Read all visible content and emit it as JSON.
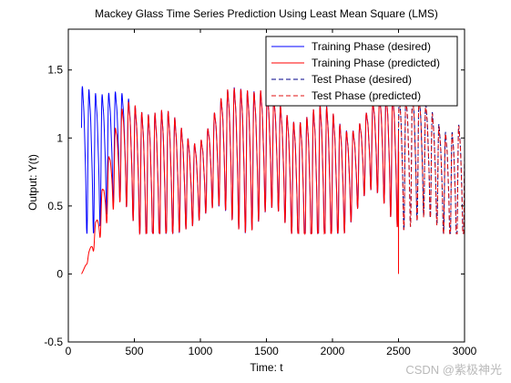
{
  "watermark": "CSDN @紫极神光",
  "chart_data": {
    "type": "line",
    "title": "Mackey Glass Time Series Prediction Using Least Mean Square (LMS)",
    "xlabel": "Time: t",
    "ylabel": "Output: Y(t)",
    "xlim": [
      0,
      3000
    ],
    "ylim": [
      -0.5,
      1.8
    ],
    "xticks": [
      0,
      500,
      1000,
      1500,
      2000,
      2500,
      3000
    ],
    "xtick_labels": [
      "0",
      "500",
      "1000",
      "1500",
      "2000",
      "2500",
      "3000"
    ],
    "yticks": [
      -0.5,
      0,
      0.5,
      1,
      1.5
    ],
    "ytick_labels": [
      "-0.5",
      "0",
      "0.5",
      "1",
      "1.5"
    ],
    "grid": false,
    "legend_position": "top-right",
    "series": [
      {
        "name": "Training Phase (desired)",
        "color": "#0000ff",
        "style": "solid",
        "x_range": [
          100,
          2500
        ]
      },
      {
        "name": "Training Phase (predicted)",
        "color": "#ff0000",
        "style": "solid",
        "x_range": [
          100,
          2500
        ]
      },
      {
        "name": "Test Phase (desired)",
        "color": "#00008b",
        "style": "dashed",
        "x_range": [
          2500,
          3000
        ]
      },
      {
        "name": "Test Phase (predicted)",
        "color": "#e01010",
        "style": "dashed",
        "x_range": [
          2500,
          3000
        ]
      }
    ],
    "signal": {
      "x_start": 100,
      "x_end": 3000,
      "oscillation_period": 50,
      "amplitude_range": [
        0.3,
        1.35
      ],
      "predicted_start_value": 0.0,
      "predicted_convergence_time": 400,
      "spike_at_x": 2500,
      "spike_value": 0.0
    }
  }
}
